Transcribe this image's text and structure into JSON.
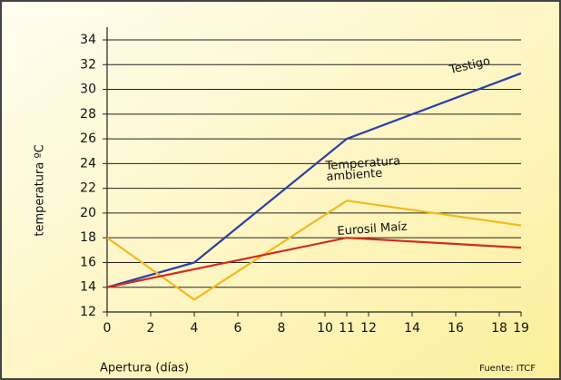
{
  "chart_data": {
    "type": "line",
    "xlabel": "Apertura (días)",
    "ylabel": "temperatura ºC",
    "source": "Fuente: ITCF",
    "xlim": [
      0,
      19
    ],
    "xticks": [
      0,
      2,
      4,
      6,
      8,
      10,
      11,
      12,
      14,
      16,
      18,
      19
    ],
    "ylim": [
      12,
      34
    ],
    "yticks": [
      12,
      14,
      16,
      18,
      20,
      22,
      24,
      26,
      28,
      30,
      32,
      34
    ],
    "grid": true,
    "series": [
      {
        "name": "Testigo",
        "color": "#2a3fa8",
        "x": [
          0,
          4,
          11,
          19
        ],
        "values": [
          14,
          16,
          26,
          31.3
        ]
      },
      {
        "name": "Temperatura ambiente",
        "color": "#f2b91c",
        "x": [
          0,
          4,
          11,
          19
        ],
        "values": [
          18,
          13,
          21,
          19
        ]
      },
      {
        "name": "Eurosil Maíz",
        "color": "#d42a20",
        "x": [
          0,
          11,
          19
        ],
        "values": [
          14,
          18,
          17.2
        ]
      }
    ]
  }
}
